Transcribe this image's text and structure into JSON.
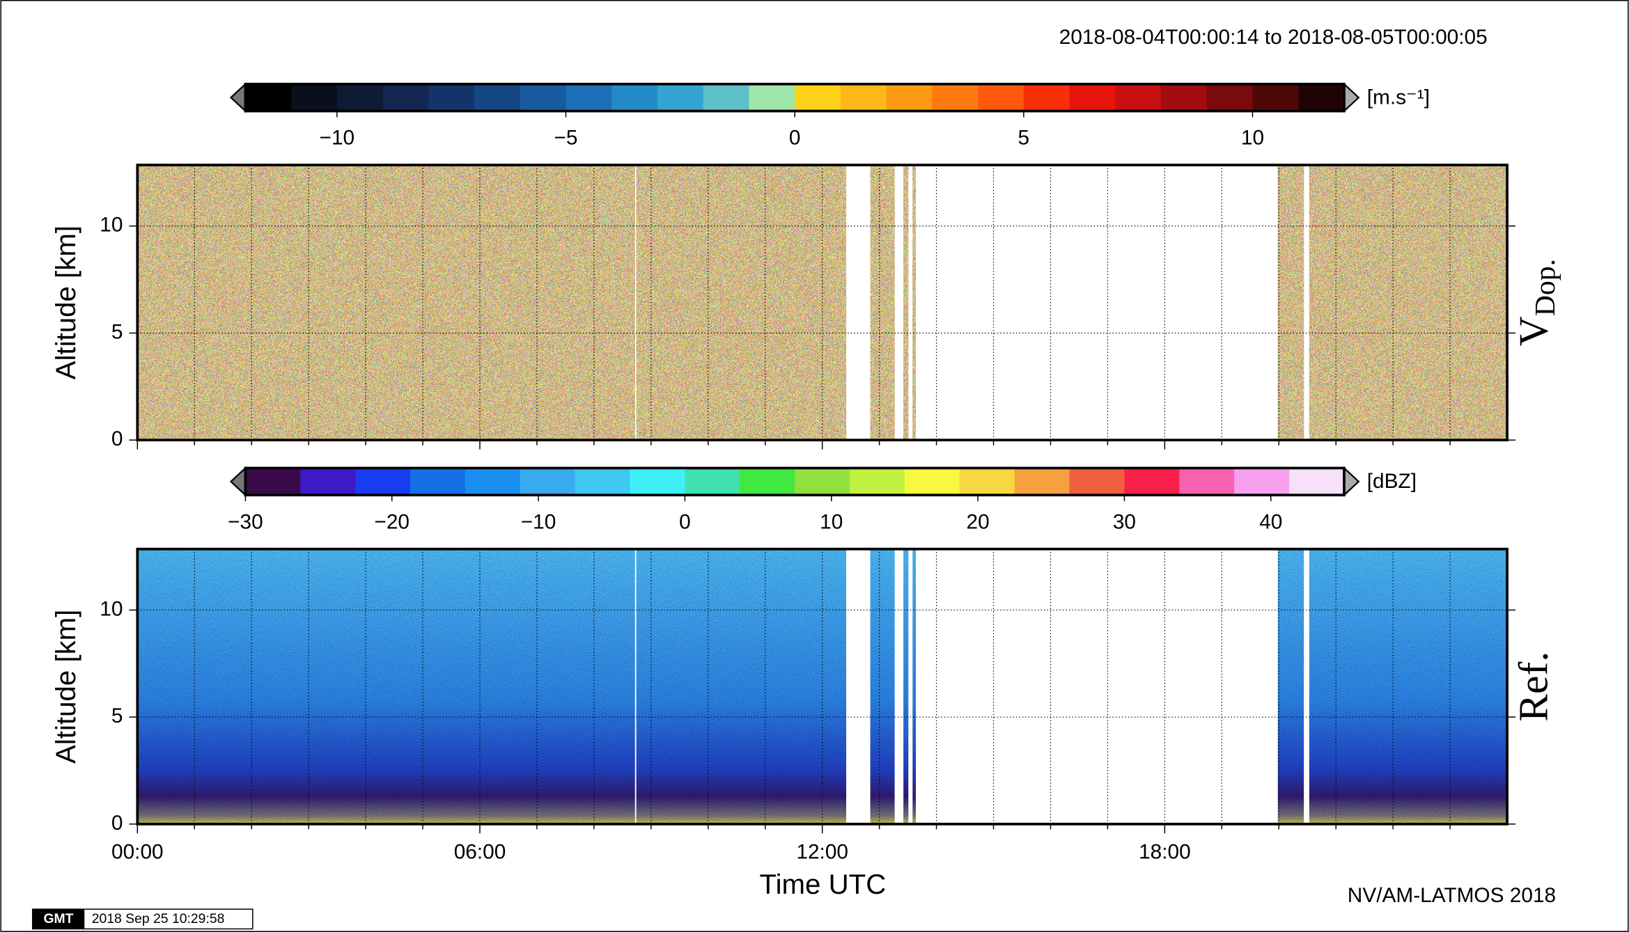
{
  "period": "2018-08-04T00:00:14 to 2018-08-05T00:00:05",
  "credit": "NV/AM-LATMOS 2018",
  "logo": "GMT",
  "timestamp": "2018 Sep 25 10:29:58",
  "time_axis": {
    "xlabel": "Time UTC",
    "xlim": [
      0,
      24
    ],
    "xticks": [
      {
        "value": 0,
        "label": "00:00"
      },
      {
        "value": 6,
        "label": "06:00"
      },
      {
        "value": 12,
        "label": "12:00"
      },
      {
        "value": 18,
        "label": "18:00"
      }
    ],
    "grid_hours": [
      1,
      2,
      3,
      4,
      5,
      7,
      8,
      9,
      10,
      11,
      13,
      14,
      15,
      16,
      17,
      19,
      20,
      21,
      22,
      23
    ]
  },
  "chart_data": [
    {
      "type": "heatmap",
      "ylabel": "Altitude [km]",
      "panel_label": "V",
      "panel_label_sub": "Dop.",
      "ylim": [
        0,
        12.85
      ],
      "yticks": [
        0,
        5,
        10
      ],
      "grid": true,
      "data_segments": [
        [
          0,
          8.72
        ],
        [
          8.74,
          12.42
        ],
        [
          12.84,
          13.27
        ],
        [
          13.42,
          13.51
        ],
        [
          13.58,
          13.64
        ],
        [
          19.98,
          20.44
        ],
        [
          20.53,
          24
        ]
      ],
      "colorbar": {
        "unit": "[m.s⁻¹]",
        "lim": [
          -12,
          12
        ],
        "ticks": [
          {
            "value": -10,
            "label": "−10"
          },
          {
            "value": -5,
            "label": "−5"
          },
          0,
          5,
          10
        ],
        "colors": [
          "#000000",
          "#0a0f1e",
          "#0f1a35",
          "#12264f",
          "#143469",
          "#154684",
          "#185a9f",
          "#1c6fb6",
          "#228ac8",
          "#34a5d2",
          "#5dc0c9",
          "#9ee6a9",
          "#ffd21a",
          "#ffb81a",
          "#ff9a14",
          "#ff7a10",
          "#ff5a0c",
          "#f7300a",
          "#e8150c",
          "#c80f10",
          "#a00c10",
          "#7a0a0e",
          "#4e0808",
          "#200405"
        ]
      }
    },
    {
      "type": "heatmap",
      "ylabel": "Altitude [km]",
      "panel_label": "Ref.",
      "ylim": [
        0,
        12.85
      ],
      "yticks": [
        0,
        5,
        10
      ],
      "grid": true,
      "data_segments": [
        [
          0,
          8.72
        ],
        [
          8.74,
          12.42
        ],
        [
          12.84,
          13.27
        ],
        [
          13.42,
          13.51
        ],
        [
          13.58,
          13.64
        ],
        [
          19.98,
          20.44
        ],
        [
          20.53,
          24
        ]
      ],
      "colorbar": {
        "unit": "[dBZ]",
        "lim": [
          -30,
          45
        ],
        "ticks": [
          {
            "value": -30,
            "label": "−30"
          },
          {
            "value": -20,
            "label": "−20"
          },
          {
            "value": -10,
            "label": "−10"
          },
          0,
          10,
          20,
          30,
          40
        ],
        "colors": [
          "#3a0a4a",
          "#3e1ac8",
          "#1a3cf0",
          "#1570e8",
          "#1a8ef0",
          "#3aaaf0",
          "#40c8f0",
          "#40f0f8",
          "#40e0b0",
          "#40e840",
          "#90e040",
          "#c0f040",
          "#f8f840",
          "#f8d840",
          "#f8a040",
          "#f06040",
          "#f82048",
          "#f860b0",
          "#f8a0f0",
          "#f8e0f8"
        ]
      }
    }
  ]
}
